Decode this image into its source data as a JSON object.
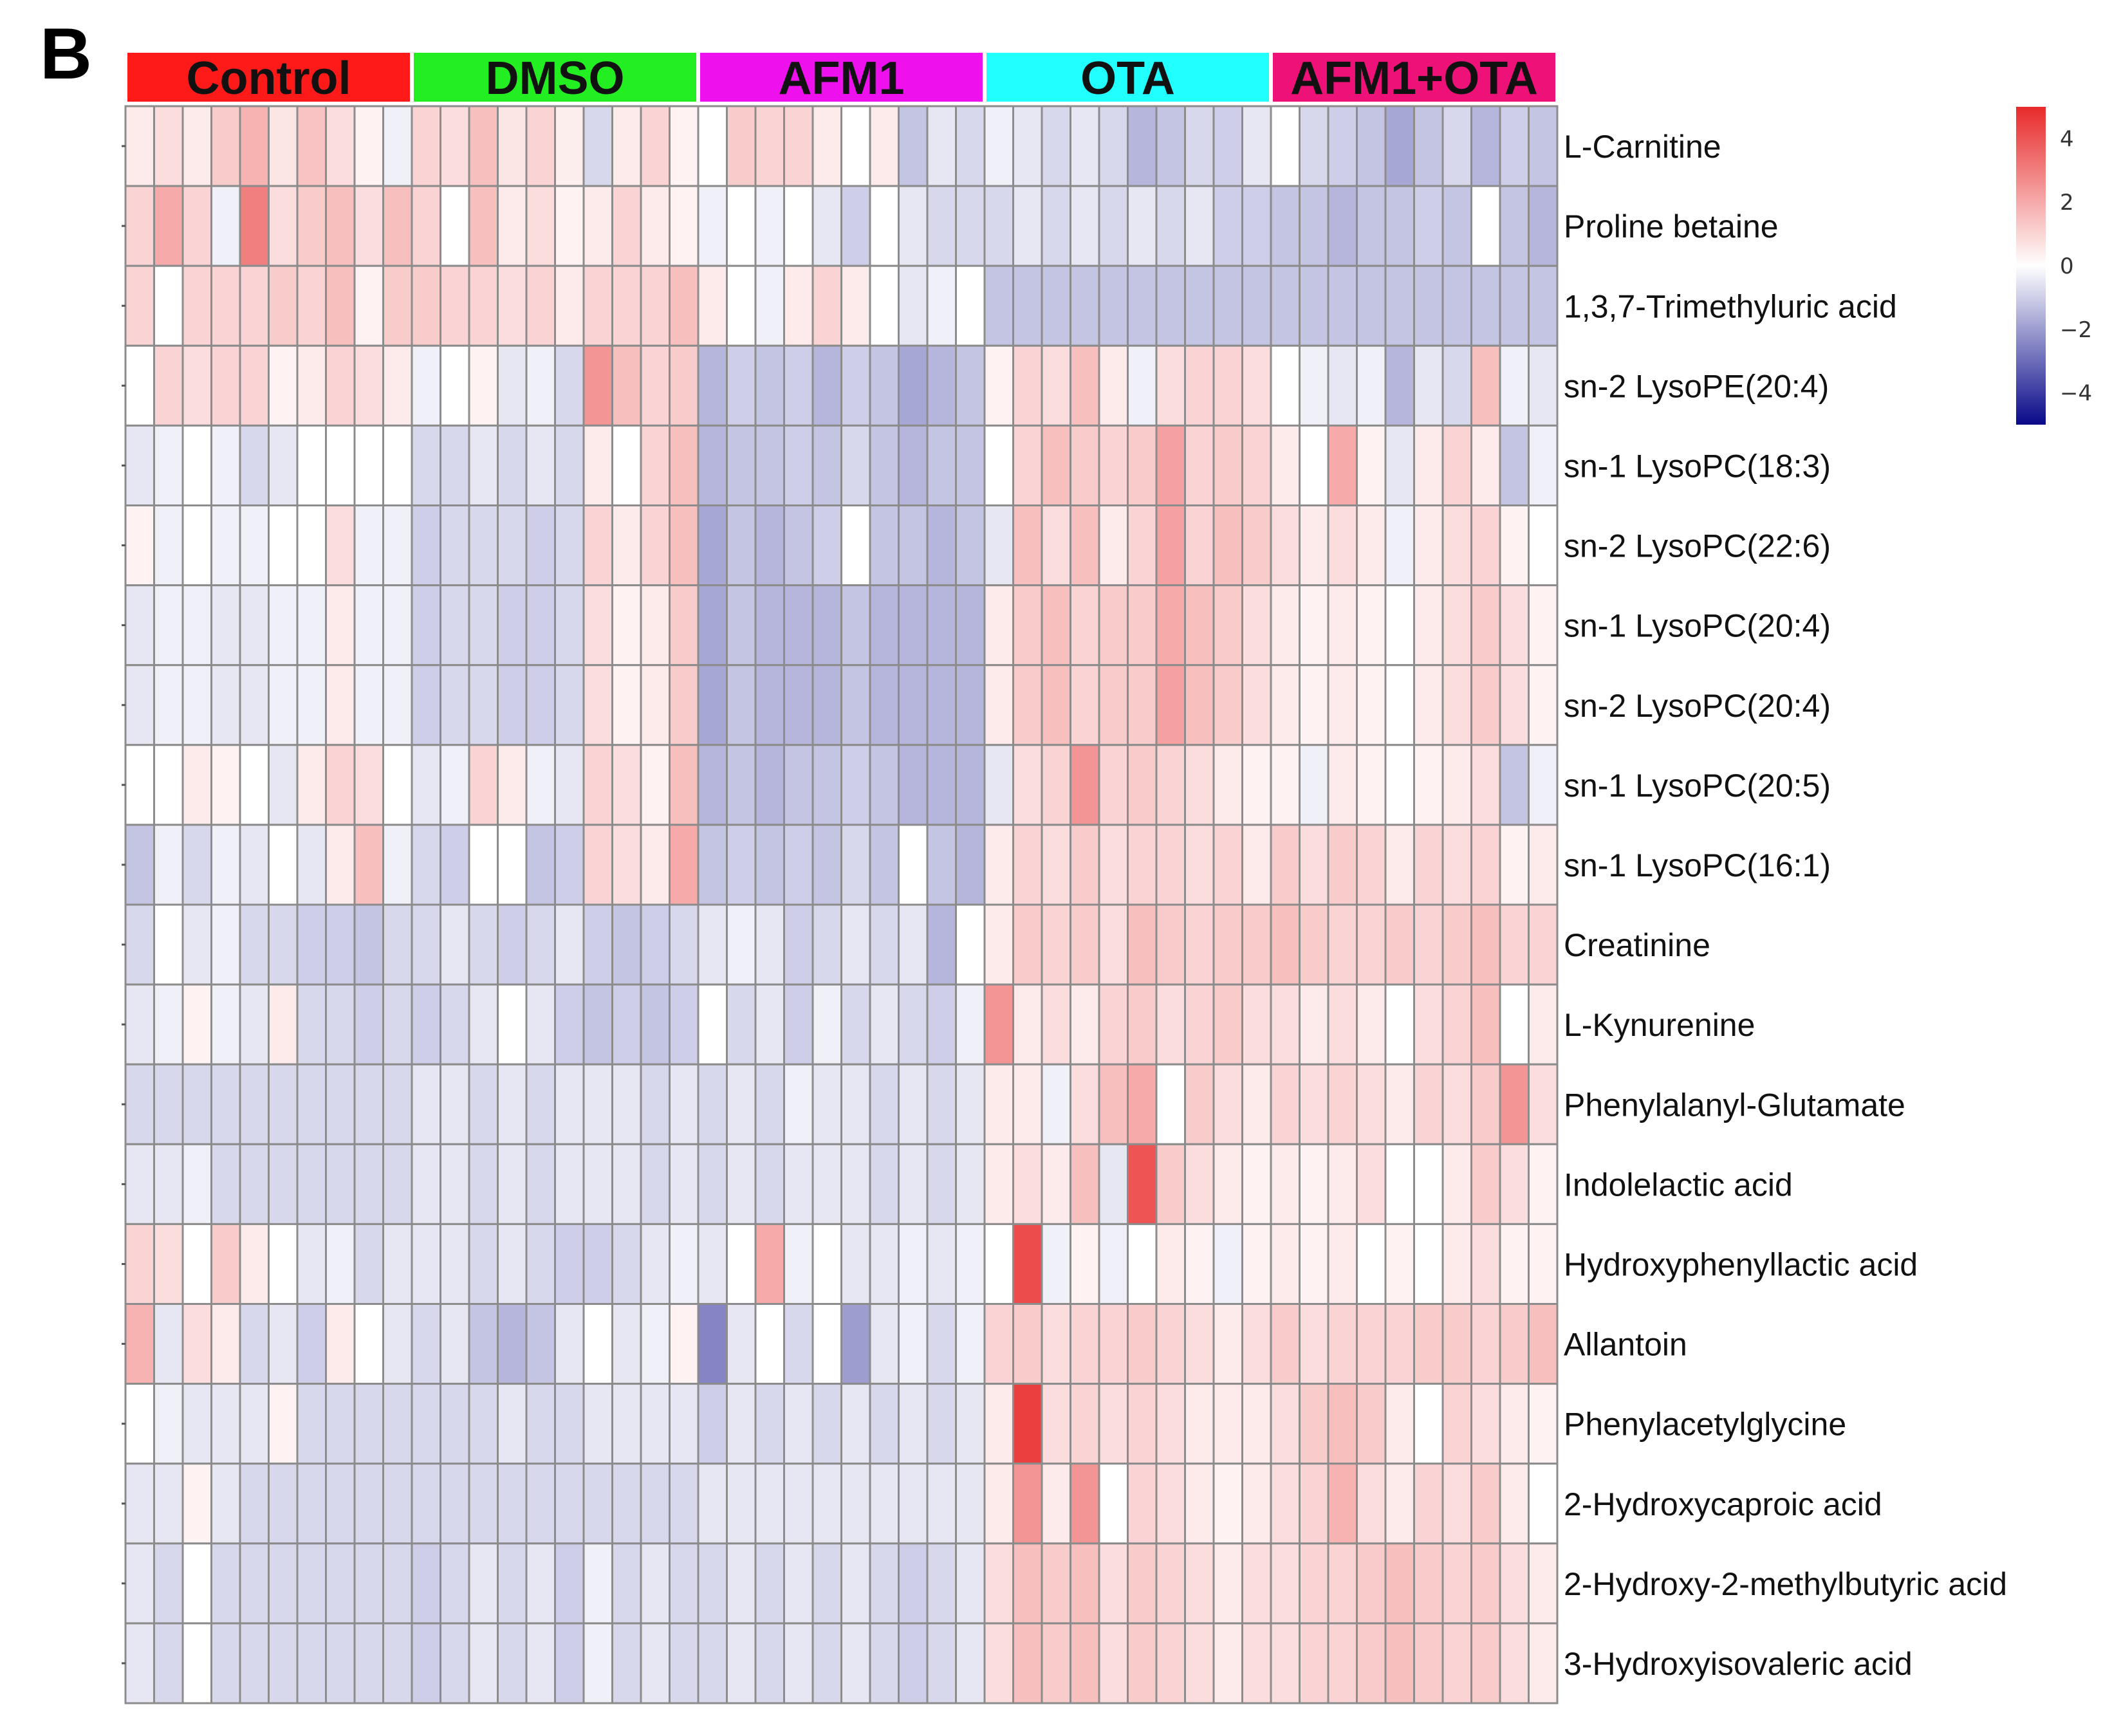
{
  "panel_label": "B",
  "chart_data": {
    "type": "heatmap",
    "title": "",
    "groups": [
      {
        "name": "Control",
        "color": "#ff1a1a",
        "columns": 10
      },
      {
        "name": "DMSO",
        "color": "#22ee22",
        "columns": 10
      },
      {
        "name": "AFM1",
        "color": "#ee11ee",
        "columns": 10
      },
      {
        "name": "OTA",
        "color": "#22ffff",
        "columns": 10
      },
      {
        "name": "AFM1+OTA",
        "color": "#ee1177",
        "columns": 10
      }
    ],
    "rows": [
      "L-Carnitine",
      "Proline betaine",
      "1,3,7-Trimethyluric acid",
      "sn-2 LysoPE(20:4)",
      "sn-1 LysoPC(18:3)",
      "sn-2 LysoPC(22:6)",
      "sn-1 LysoPC(20:4)",
      "sn-2 LysoPC(20:4)",
      "sn-1 LysoPC(20:5)",
      "sn-1 LysoPC(16:1)",
      "Creatinine",
      "L-Kynurenine",
      "Phenylalanyl-Glutamate",
      "Indolelactic acid",
      "Hydroxyphenyllactic acid",
      "Allantoin",
      "Phenylacetylglycine",
      "2-Hydroxycaproic acid",
      "2-Hydroxy-2-methylbutyric acid",
      "3-Hydroxyisovaleric acid"
    ],
    "values": [
      [
        0.5,
        0.8,
        0.5,
        1.2,
        1.8,
        0.6,
        1.4,
        0.8,
        0.3,
        -0.3,
        1.0,
        0.8,
        1.5,
        0.6,
        1.0,
        0.4,
        -0.8,
        0.5,
        1.0,
        0.3,
        0.0,
        1.2,
        1.0,
        1.0,
        0.5,
        0.0,
        0.5,
        -1.2,
        -0.5,
        -0.8,
        -0.3,
        -0.5,
        -0.8,
        -0.5,
        -0.8,
        -1.5,
        -1.2,
        -0.8,
        -1.0,
        -0.5,
        0.0,
        -0.8,
        -1.0,
        -1.2,
        -1.8,
        -1.2,
        -0.8,
        -1.5,
        -1.0,
        -1.2
      ],
      [
        1.0,
        2.0,
        1.0,
        -0.3,
        3.0,
        0.8,
        1.2,
        1.5,
        0.8,
        1.5,
        1.0,
        0.0,
        1.5,
        0.5,
        0.8,
        0.3,
        0.5,
        1.0,
        0.5,
        0.3,
        -0.3,
        0.0,
        -0.3,
        0.0,
        -0.5,
        -1.0,
        0.0,
        -0.5,
        -0.8,
        -0.8,
        -0.8,
        -0.5,
        -0.8,
        -0.5,
        -0.8,
        -0.5,
        -0.8,
        -0.5,
        -1.0,
        -1.0,
        -1.2,
        -1.2,
        -1.5,
        -1.2,
        -1.2,
        -1.0,
        -1.2,
        0.0,
        -1.2,
        -1.5
      ],
      [
        1.0,
        0.0,
        1.0,
        1.0,
        1.0,
        1.2,
        1.0,
        1.5,
        0.3,
        1.2,
        1.2,
        1.0,
        1.0,
        0.8,
        1.0,
        0.5,
        1.0,
        1.0,
        1.0,
        1.5,
        0.5,
        0.0,
        -0.3,
        0.5,
        1.0,
        0.5,
        0.0,
        -0.5,
        -0.3,
        0.0,
        -1.2,
        -1.2,
        -1.2,
        -1.2,
        -1.2,
        -1.2,
        -1.2,
        -1.2,
        -1.2,
        -1.2,
        -1.2,
        -1.2,
        -1.2,
        -1.2,
        -1.2,
        -1.2,
        -1.2,
        -1.2,
        -1.2,
        -1.2
      ],
      [
        0.0,
        1.0,
        0.8,
        1.0,
        1.0,
        0.3,
        0.5,
        1.0,
        0.8,
        0.5,
        -0.3,
        0.0,
        0.3,
        -0.5,
        -0.3,
        -0.8,
        2.5,
        1.5,
        1.0,
        1.2,
        -1.5,
        -1.0,
        -1.2,
        -1.0,
        -1.5,
        -1.0,
        -1.2,
        -1.8,
        -1.5,
        -1.2,
        0.3,
        1.0,
        0.8,
        1.5,
        0.5,
        -0.3,
        0.8,
        1.0,
        1.0,
        0.8,
        0.0,
        -0.3,
        -0.5,
        -0.3,
        -1.5,
        -0.5,
        -0.8,
        1.5,
        -0.3,
        -0.5
      ],
      [
        -0.5,
        -0.3,
        0.0,
        -0.3,
        -0.8,
        -0.5,
        0.0,
        0.0,
        0.0,
        0.0,
        -0.8,
        -0.8,
        -0.5,
        -0.8,
        -0.5,
        -0.8,
        0.5,
        0.0,
        1.0,
        1.5,
        -1.5,
        -1.2,
        -1.2,
        -1.0,
        -1.2,
        -0.8,
        -1.2,
        -1.5,
        -1.2,
        -1.2,
        0.0,
        1.0,
        1.5,
        1.2,
        1.0,
        1.2,
        2.2,
        1.0,
        1.2,
        1.0,
        0.5,
        0.0,
        2.0,
        0.3,
        -0.5,
        0.5,
        1.0,
        0.5,
        -1.2,
        -0.3
      ],
      [
        0.3,
        -0.3,
        0.0,
        -0.3,
        -0.3,
        0.0,
        0.0,
        0.8,
        -0.3,
        -0.3,
        -1.0,
        -0.8,
        -0.8,
        -0.8,
        -1.0,
        -0.8,
        1.0,
        0.5,
        1.0,
        1.5,
        -1.8,
        -1.2,
        -1.5,
        -1.2,
        -1.0,
        0.0,
        -1.2,
        -1.2,
        -1.5,
        -1.2,
        -0.5,
        1.5,
        0.8,
        1.5,
        0.5,
        1.0,
        2.2,
        1.0,
        1.5,
        1.2,
        0.8,
        0.5,
        0.8,
        0.5,
        -0.3,
        0.5,
        0.8,
        1.0,
        0.3,
        0.0
      ],
      [
        -0.5,
        -0.3,
        -0.3,
        -0.5,
        -0.5,
        -0.3,
        -0.3,
        0.5,
        -0.3,
        -0.3,
        -1.0,
        -0.8,
        -0.8,
        -1.0,
        -1.0,
        -0.8,
        0.8,
        0.3,
        0.5,
        1.2,
        -1.8,
        -1.2,
        -1.5,
        -1.5,
        -1.5,
        -1.2,
        -1.5,
        -1.5,
        -1.5,
        -1.5,
        0.5,
        1.2,
        1.5,
        1.0,
        1.2,
        1.2,
        2.0,
        1.5,
        1.2,
        0.8,
        0.5,
        0.3,
        0.5,
        0.3,
        0.0,
        0.5,
        0.8,
        1.2,
        0.8,
        0.3
      ],
      [
        -0.5,
        -0.3,
        -0.3,
        -0.5,
        -0.5,
        -0.3,
        -0.3,
        0.5,
        -0.3,
        -0.3,
        -1.0,
        -0.8,
        -0.8,
        -1.0,
        -1.0,
        -0.8,
        0.8,
        0.3,
        0.5,
        1.2,
        -1.8,
        -1.2,
        -1.5,
        -1.5,
        -1.5,
        -1.2,
        -1.5,
        -1.5,
        -1.5,
        -1.5,
        0.5,
        1.2,
        1.5,
        1.0,
        1.2,
        1.2,
        2.2,
        1.5,
        1.2,
        0.8,
        0.5,
        0.3,
        0.5,
        0.3,
        0.0,
        0.5,
        0.8,
        1.2,
        0.8,
        0.3
      ],
      [
        0.0,
        0.0,
        0.5,
        0.3,
        0.0,
        -0.5,
        0.5,
        1.0,
        0.8,
        0.0,
        -0.5,
        -0.3,
        1.0,
        0.5,
        -0.3,
        -0.5,
        1.0,
        0.8,
        0.3,
        1.5,
        -1.5,
        -1.2,
        -1.5,
        -1.2,
        -1.2,
        -1.0,
        -1.2,
        -1.5,
        -1.5,
        -1.5,
        -0.5,
        0.8,
        1.0,
        2.5,
        1.0,
        1.2,
        1.0,
        0.8,
        0.5,
        0.3,
        0.3,
        -0.3,
        0.5,
        0.3,
        0.0,
        0.3,
        0.5,
        0.8,
        -1.2,
        -0.3
      ],
      [
        -1.2,
        -0.3,
        -0.8,
        -0.3,
        -0.5,
        0.0,
        -0.5,
        0.5,
        1.5,
        -0.3,
        -0.8,
        -1.0,
        0.0,
        0.0,
        -1.2,
        -1.0,
        1.0,
        0.8,
        0.5,
        2.0,
        -1.2,
        -1.0,
        -1.2,
        -1.0,
        -1.2,
        -0.8,
        -1.2,
        0.0,
        -1.2,
        -1.5,
        0.5,
        1.0,
        0.8,
        1.2,
        0.8,
        1.0,
        1.0,
        0.8,
        1.0,
        0.5,
        1.2,
        0.8,
        1.2,
        1.0,
        0.5,
        1.0,
        0.8,
        1.0,
        0.3,
        0.5
      ],
      [
        -0.8,
        0.0,
        -0.5,
        -0.3,
        -0.8,
        -0.8,
        -1.0,
        -1.0,
        -1.2,
        -0.8,
        -0.8,
        -0.5,
        -0.8,
        -1.0,
        -0.8,
        -0.5,
        -1.0,
        -1.2,
        -1.0,
        -0.8,
        -0.5,
        -0.3,
        -0.5,
        -1.0,
        -0.8,
        -0.5,
        -0.8,
        -0.5,
        -1.5,
        0.0,
        0.5,
        1.2,
        1.0,
        1.2,
        0.8,
        1.5,
        1.2,
        1.0,
        1.2,
        1.2,
        1.5,
        1.2,
        1.0,
        1.0,
        1.2,
        1.0,
        1.2,
        1.5,
        1.0,
        1.0
      ],
      [
        -0.5,
        -0.3,
        0.3,
        -0.3,
        -0.5,
        0.5,
        -0.8,
        -0.8,
        -1.0,
        -0.8,
        -1.0,
        -0.8,
        -0.5,
        0.0,
        -0.5,
        -1.0,
        -1.2,
        -1.0,
        -1.2,
        -1.0,
        0.0,
        -0.8,
        -0.5,
        -1.0,
        -0.3,
        -0.8,
        -0.5,
        -0.8,
        -1.0,
        -0.3,
        2.5,
        0.5,
        0.8,
        0.5,
        1.0,
        1.2,
        0.8,
        1.0,
        1.2,
        0.8,
        0.8,
        0.5,
        0.8,
        0.5,
        0.0,
        0.8,
        1.0,
        1.5,
        0.0,
        0.5
      ],
      [
        -0.8,
        -0.8,
        -0.8,
        -0.8,
        -0.8,
        -0.8,
        -0.8,
        -0.8,
        -0.8,
        -0.8,
        -0.5,
        -0.5,
        -0.8,
        -0.5,
        -0.8,
        -0.5,
        -0.5,
        -0.5,
        -0.8,
        -0.5,
        -0.8,
        -0.5,
        -0.8,
        -0.3,
        -0.5,
        -0.5,
        -0.8,
        -0.5,
        -0.8,
        -0.5,
        0.5,
        0.5,
        -0.3,
        0.8,
        1.5,
        2.0,
        0.0,
        1.2,
        0.8,
        0.5,
        1.0,
        0.8,
        1.0,
        0.8,
        0.5,
        1.0,
        0.8,
        1.2,
        2.5,
        0.8
      ],
      [
        -0.5,
        -0.5,
        -0.3,
        -0.8,
        -0.8,
        -0.8,
        -0.8,
        -0.8,
        -0.8,
        -0.8,
        -0.5,
        -0.5,
        -0.8,
        -0.5,
        -0.8,
        -0.5,
        -0.5,
        -0.5,
        -0.8,
        -0.5,
        -0.8,
        -0.5,
        -0.8,
        -0.5,
        -0.5,
        -0.5,
        -0.8,
        -0.5,
        -0.8,
        -0.5,
        0.5,
        0.8,
        0.5,
        1.5,
        -0.5,
        4.0,
        1.2,
        0.8,
        0.5,
        0.3,
        0.5,
        0.3,
        0.5,
        0.8,
        0.0,
        0.0,
        0.5,
        1.2,
        0.8,
        0.3
      ],
      [
        1.0,
        0.8,
        0.0,
        1.2,
        0.5,
        0.0,
        -0.5,
        -0.3,
        -0.8,
        -0.5,
        -0.5,
        -0.5,
        -0.8,
        -0.5,
        -0.8,
        -1.0,
        -1.0,
        -0.8,
        -0.5,
        -0.3,
        -0.5,
        0.0,
        2.0,
        -0.3,
        0.0,
        -0.5,
        -0.5,
        -0.3,
        -0.5,
        -0.3,
        0.0,
        4.2,
        -0.3,
        0.3,
        -0.3,
        0.0,
        0.5,
        0.3,
        -0.3,
        0.3,
        0.5,
        0.3,
        0.5,
        0.0,
        0.3,
        0.0,
        0.5,
        0.8,
        0.3,
        0.3
      ],
      [
        1.8,
        -0.5,
        0.8,
        0.5,
        -0.8,
        -0.5,
        -1.0,
        0.5,
        0.0,
        -0.5,
        -0.8,
        -0.5,
        -1.2,
        -1.5,
        -1.2,
        -0.5,
        0.0,
        -0.5,
        -0.3,
        0.3,
        -2.5,
        -0.5,
        0.0,
        -0.8,
        0.0,
        -2.0,
        -0.5,
        -0.3,
        -0.8,
        -0.3,
        1.0,
        1.2,
        0.8,
        1.0,
        1.0,
        1.2,
        1.0,
        0.8,
        0.5,
        0.8,
        1.2,
        0.8,
        1.0,
        1.0,
        1.0,
        1.2,
        1.2,
        1.0,
        1.2,
        1.5
      ],
      [
        0.0,
        -0.3,
        -0.5,
        -0.5,
        -0.5,
        0.3,
        -0.8,
        -0.8,
        -0.8,
        -0.8,
        -0.8,
        -0.8,
        -0.8,
        -0.5,
        -0.8,
        -0.8,
        -0.5,
        -0.5,
        -0.5,
        -0.5,
        -1.0,
        -0.5,
        -0.8,
        -0.5,
        -0.8,
        -0.5,
        -0.8,
        -0.5,
        -0.8,
        -0.5,
        0.5,
        4.5,
        0.8,
        1.0,
        0.8,
        1.0,
        0.8,
        0.5,
        0.5,
        0.5,
        0.8,
        1.2,
        1.5,
        1.2,
        0.5,
        0.0,
        1.0,
        0.8,
        0.5,
        0.3
      ],
      [
        -0.5,
        -0.5,
        0.3,
        -0.5,
        -0.8,
        -0.8,
        -0.8,
        -0.8,
        -0.8,
        -0.8,
        -0.8,
        -0.8,
        -0.8,
        -0.8,
        -0.8,
        -0.8,
        -0.8,
        -0.8,
        -0.8,
        -0.8,
        -0.5,
        -0.5,
        -0.5,
        -0.5,
        -0.5,
        -0.5,
        -0.5,
        -0.5,
        -0.5,
        -0.5,
        0.5,
        2.5,
        0.5,
        2.5,
        0.0,
        1.0,
        0.8,
        0.5,
        0.3,
        0.5,
        0.8,
        1.0,
        1.8,
        0.8,
        0.5,
        1.0,
        0.8,
        1.2,
        0.5,
        0.0
      ],
      [
        -0.5,
        -0.8,
        0.0,
        -0.8,
        -0.8,
        -0.8,
        -0.8,
        -0.8,
        -0.8,
        -0.8,
        -1.0,
        -0.8,
        -0.5,
        -0.8,
        -0.5,
        -1.0,
        -0.3,
        -0.8,
        -0.5,
        -0.8,
        -0.8,
        -0.5,
        -0.8,
        -0.5,
        -0.8,
        -0.5,
        -0.8,
        -1.0,
        -0.8,
        -0.5,
        0.8,
        1.5,
        1.2,
        1.5,
        0.8,
        1.2,
        1.0,
        0.8,
        0.5,
        0.8,
        0.8,
        1.0,
        1.0,
        1.2,
        1.5,
        1.2,
        1.0,
        1.2,
        0.8,
        0.5
      ],
      [
        -0.5,
        -0.8,
        0.0,
        -0.8,
        -0.8,
        -0.8,
        -0.8,
        -0.8,
        -0.8,
        -0.8,
        -1.0,
        -0.8,
        -0.5,
        -0.8,
        -0.5,
        -1.0,
        -0.3,
        -0.8,
        -0.5,
        -0.8,
        -0.8,
        -0.5,
        -0.8,
        -0.5,
        -0.8,
        -0.5,
        -0.8,
        -1.0,
        -0.8,
        -0.5,
        0.8,
        1.5,
        1.2,
        1.5,
        0.8,
        1.2,
        1.0,
        0.8,
        0.5,
        0.8,
        0.8,
        1.0,
        1.0,
        1.2,
        1.5,
        1.2,
        1.0,
        1.2,
        0.8,
        0.5
      ]
    ],
    "colorbar": {
      "min": -5,
      "max": 5,
      "ticks": [
        4,
        2,
        0,
        -2,
        -4
      ],
      "colors": {
        "low": "#0a0a8a",
        "mid": "#ffffff",
        "high": "#e82a2a"
      }
    }
  }
}
